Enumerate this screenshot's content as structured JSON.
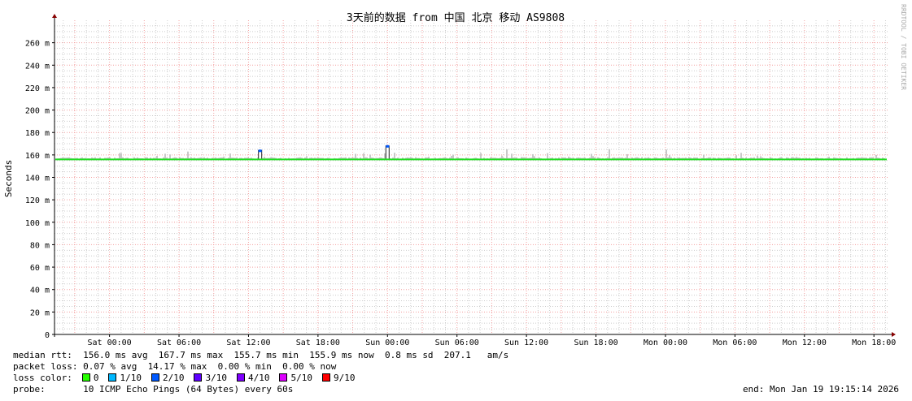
{
  "chart_data": {
    "type": "line",
    "title": "3天前的数据 from 中国 北京 移动 AS9808",
    "ylabel": "Seconds",
    "watermark": "RRDTOOL / TOBI OETIKER",
    "ylim": [
      0,
      0.28
    ],
    "yticks": [
      "0",
      "20 m",
      "40 m",
      "60 m",
      "80 m",
      "100 m",
      "120 m",
      "140 m",
      "160 m",
      "180 m",
      "200 m",
      "220 m",
      "240 m",
      "260 m"
    ],
    "xlim": [
      "Fri 19:15",
      "Mon 19:15"
    ],
    "xticks": [
      "Sat 00:00",
      "Sat 06:00",
      "Sat 12:00",
      "Sat 18:00",
      "Sun 00:00",
      "Sun 06:00",
      "Sun 12:00",
      "Sun 18:00",
      "Mon 00:00",
      "Mon 06:00",
      "Mon 12:00",
      "Mon 18:00"
    ],
    "grid": true,
    "series": [
      {
        "name": "median rtt",
        "color": "#22dd22",
        "baseline_ms": 156.0,
        "spikes": [
          {
            "time": "Sat 13:00",
            "value_ms": 164,
            "loss": "2/10"
          },
          {
            "time": "Sun 00:00",
            "value_ms": 168,
            "loss": "2/10"
          }
        ]
      }
    ]
  },
  "legend": {
    "median_rtt": "median rtt:  156.0 ms avg  167.7 ms max  155.7 ms min  155.9 ms now  0.8 ms sd  207.1   am/s",
    "packet_loss": "packet loss: 0.07 % avg  14.17 % max  0.00 % min  0.00 % now",
    "loss_color_label": "loss color:",
    "loss_colors": [
      {
        "label": "0",
        "color": "#26ff00"
      },
      {
        "label": "1/10",
        "color": "#00b8ff"
      },
      {
        "label": "2/10",
        "color": "#0059ff"
      },
      {
        "label": "3/10",
        "color": "#5e00ff"
      },
      {
        "label": "4/10",
        "color": "#7e00ff"
      },
      {
        "label": "5/10",
        "color": "#dd00ff"
      },
      {
        "label": "9/10",
        "color": "#ff0000"
      }
    ],
    "probe": "probe:       10 ICMP Echo Pings (64 Bytes) every 60s",
    "end": "end: Mon Jan 19 19:15:14 2026"
  }
}
